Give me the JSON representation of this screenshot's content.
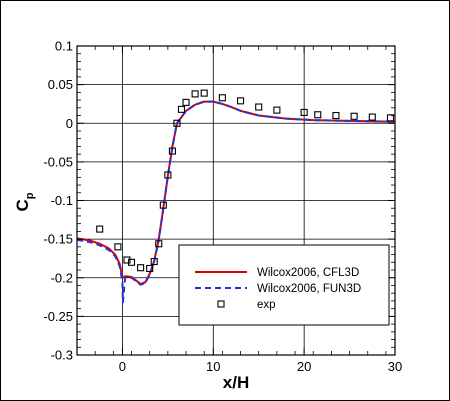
{
  "chart_data": {
    "type": "line",
    "title": "",
    "xlabel": "x/H",
    "ylabel_main": "C",
    "ylabel_sub": "p",
    "xlim": [
      -5,
      30
    ],
    "ylim": [
      -0.3,
      0.1
    ],
    "xticks": [
      0,
      10,
      20,
      30
    ],
    "xtick_labels": [
      "0",
      "10",
      "20",
      "30"
    ],
    "yticks": [
      0.1,
      0.05,
      0,
      -0.05,
      -0.1,
      -0.15,
      -0.2,
      -0.25,
      -0.3
    ],
    "ytick_labels": [
      "0.1",
      "0.05",
      "0",
      "-0.05",
      "-0.1",
      "-0.15",
      "-0.2",
      "-0.25",
      "-0.3"
    ],
    "grid": true,
    "legend_position": "bottom-right",
    "series": [
      {
        "name": "Wilcox2006, CFL3D",
        "style": "solid",
        "color": "#dd0000",
        "x": [
          -5,
          -3.5,
          -2.5,
          -1.5,
          -0.8,
          -0.3,
          0,
          0.3,
          1,
          2,
          2.5,
          3,
          3.5,
          4,
          4.5,
          5,
          5.5,
          6,
          7,
          8,
          9,
          10,
          11,
          12,
          13,
          15,
          18,
          21,
          25,
          30
        ],
        "y": [
          -0.149,
          -0.152,
          -0.156,
          -0.162,
          -0.17,
          -0.182,
          -0.2,
          -0.198,
          -0.199,
          -0.208,
          -0.206,
          -0.195,
          -0.178,
          -0.15,
          -0.11,
          -0.068,
          -0.03,
          0.0,
          0.016,
          0.024,
          0.028,
          0.028,
          0.025,
          0.021,
          0.016,
          0.01,
          0.006,
          0.004,
          0.003,
          0.002
        ]
      },
      {
        "name": "Wilcox2006, FUN3D",
        "style": "dashed",
        "color": "#2233dd",
        "x": [
          -5,
          -3.5,
          -2.5,
          -1.5,
          -0.8,
          -0.3,
          0,
          0.05,
          0.3,
          1,
          2,
          2.5,
          3,
          3.5,
          4,
          4.5,
          5,
          5.5,
          6,
          7,
          8,
          9,
          10,
          11,
          12,
          13,
          15,
          18,
          21,
          25,
          30
        ],
        "y": [
          -0.151,
          -0.154,
          -0.158,
          -0.164,
          -0.172,
          -0.185,
          -0.205,
          -0.232,
          -0.2,
          -0.2,
          -0.209,
          -0.207,
          -0.196,
          -0.179,
          -0.151,
          -0.111,
          -0.069,
          -0.031,
          0.0,
          0.016,
          0.024,
          0.028,
          0.028,
          0.025,
          0.021,
          0.016,
          0.01,
          0.006,
          0.004,
          0.003,
          0.002
        ]
      },
      {
        "name": "exp",
        "style": "markers",
        "color": "#000000",
        "x": [
          -2.5,
          -0.5,
          0.5,
          1,
          2,
          3,
          3.5,
          4,
          4.5,
          5,
          5.5,
          6,
          6.5,
          7,
          8,
          9,
          11,
          13,
          15,
          17,
          20,
          21.5,
          23.5,
          25.5,
          27.5,
          29.5
        ],
        "y": [
          -0.137,
          -0.16,
          -0.177,
          -0.18,
          -0.187,
          -0.188,
          -0.179,
          -0.156,
          -0.106,
          -0.067,
          -0.036,
          0.0,
          0.018,
          0.027,
          0.038,
          0.039,
          0.033,
          0.029,
          0.021,
          0.017,
          0.014,
          0.011,
          0.01,
          0.009,
          0.008,
          0.007
        ]
      }
    ]
  }
}
